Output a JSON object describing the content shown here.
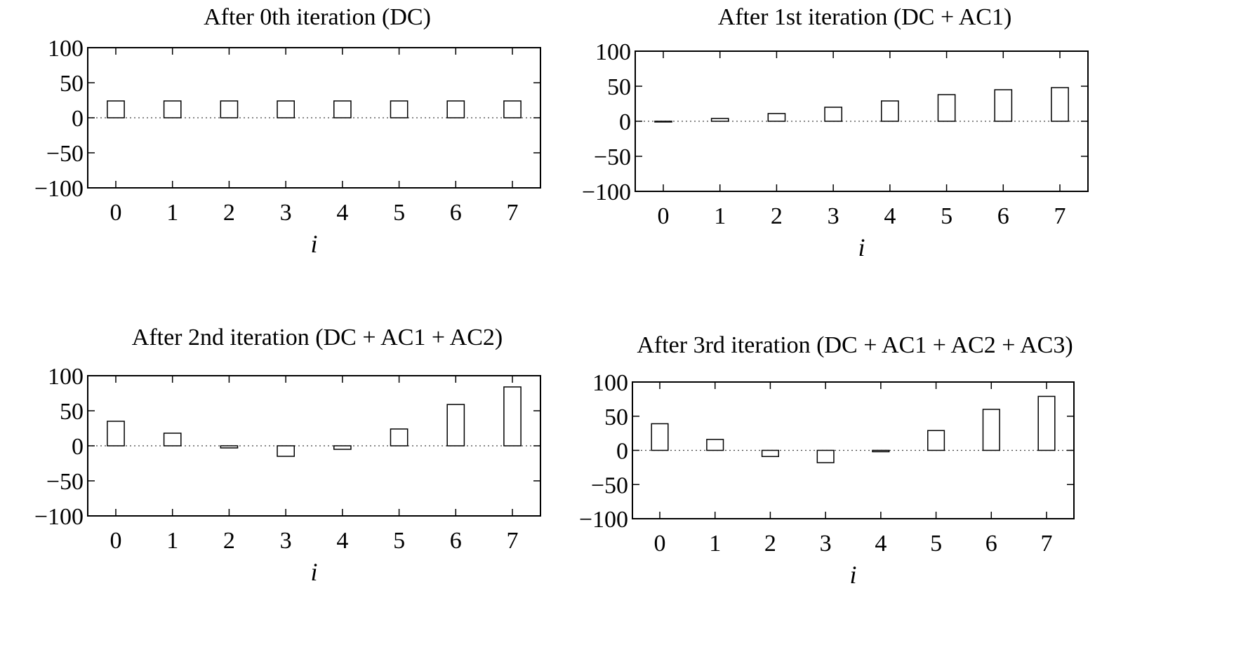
{
  "chart_data": [
    {
      "type": "bar",
      "title": "After 0th iteration (DC)",
      "xlabel": "i",
      "ylabel": "",
      "categories": [
        "0",
        "1",
        "2",
        "3",
        "4",
        "5",
        "6",
        "7"
      ],
      "values": [
        24,
        24,
        24,
        24,
        24,
        24,
        24,
        24
      ],
      "ylim": [
        -100,
        100
      ],
      "yticks": [
        100,
        50,
        0,
        -50,
        -100
      ],
      "ytick_labels": [
        "100",
        "50",
        "0",
        "−50",
        "−100"
      ],
      "zero_line": "dotted",
      "grid": false,
      "legend": "none"
    },
    {
      "type": "bar",
      "title": "After 1st iteration (DC + AC1)",
      "xlabel": "i",
      "ylabel": "",
      "categories": [
        "0",
        "1",
        "2",
        "3",
        "4",
        "5",
        "6",
        "7"
      ],
      "values": [
        0,
        4,
        11,
        20,
        29,
        38,
        45,
        48
      ],
      "ylim": [
        -100,
        100
      ],
      "yticks": [
        100,
        50,
        0,
        -50,
        -100
      ],
      "ytick_labels": [
        "100",
        "50",
        "0",
        "−50",
        "−100"
      ],
      "zero_line": "dotted",
      "grid": false,
      "legend": "none"
    },
    {
      "type": "bar",
      "title": "After 2nd iteration (DC + AC1 + AC2)",
      "xlabel": "i",
      "ylabel": "",
      "categories": [
        "0",
        "1",
        "2",
        "3",
        "4",
        "5",
        "6",
        "7"
      ],
      "values": [
        35,
        18,
        -3,
        -15,
        -5,
        24,
        59,
        84
      ],
      "ylim": [
        -100,
        100
      ],
      "yticks": [
        100,
        50,
        0,
        -50,
        -100
      ],
      "ytick_labels": [
        "100",
        "50",
        "0",
        "−50",
        "−100"
      ],
      "zero_line": "dotted",
      "grid": false,
      "legend": "none"
    },
    {
      "type": "bar",
      "title": "After 3rd iteration (DC + AC1 + AC2 + AC3)",
      "xlabel": "i",
      "ylabel": "",
      "categories": [
        "0",
        "1",
        "2",
        "3",
        "4",
        "5",
        "6",
        "7"
      ],
      "values": [
        39,
        16,
        -9,
        -18,
        -2,
        29,
        60,
        79
      ],
      "ylim": [
        -100,
        100
      ],
      "yticks": [
        100,
        50,
        0,
        -50,
        -100
      ],
      "ytick_labels": [
        "100",
        "50",
        "0",
        "−50",
        "−100"
      ],
      "zero_line": "dotted",
      "grid": false,
      "legend": "none"
    }
  ],
  "colors": {
    "bar_fill": "#ffffff",
    "bar_stroke": "#000000",
    "axis": "#000000",
    "zero_line": "#444444"
  }
}
